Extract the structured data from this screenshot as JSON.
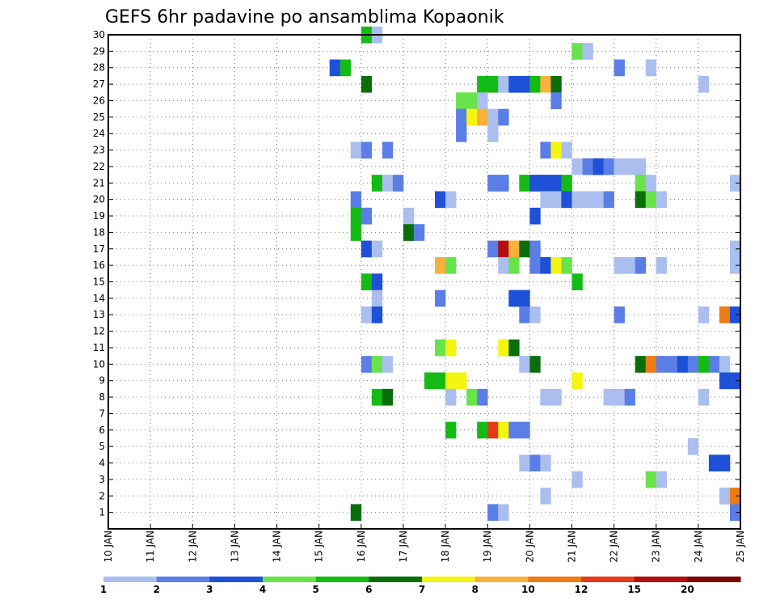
{
  "chart_data": {
    "type": "heatmap",
    "title": "GEFS 6hr padavine po ansamblima Kopaonik",
    "xlabel": "",
    "ylabel": "",
    "x_tick_labels": [
      "10 JAN",
      "11 JAN",
      "12 JAN",
      "13 JAN",
      "14 JAN",
      "15 JAN",
      "16 JAN",
      "17 JAN",
      "18 JAN",
      "19 JAN",
      "20 JAN",
      "21 JAN",
      "22 JAN",
      "23 JAN",
      "24 JAN",
      "25 JAN"
    ],
    "x_range_days": [
      10,
      25
    ],
    "step_hours": 6,
    "members": [
      1,
      2,
      3,
      4,
      5,
      6,
      7,
      8,
      9,
      10,
      11,
      12,
      13,
      14,
      15,
      16,
      17,
      18,
      19,
      20,
      21,
      22,
      23,
      24,
      25,
      26,
      27,
      28,
      29,
      30
    ],
    "y_range": [
      0,
      30
    ],
    "colorbar": {
      "colors": [
        "#aabfef",
        "#5b7ee6",
        "#1e50d8",
        "#67e34b",
        "#15bb15",
        "#0b6e0b",
        "#f5f512",
        "#f7b13c",
        "#ee7b14",
        "#e5391b",
        "#b40f0f",
        "#7a0505"
      ],
      "labels": [
        "1",
        "2",
        "3",
        "4",
        "5",
        "6",
        "7",
        "8",
        "10",
        "12",
        "15",
        "20"
      ]
    },
    "cells": [
      {
        "member": 30,
        "day": 16.0,
        "level": 5
      },
      {
        "member": 30,
        "day": 16.25,
        "level": 1
      },
      {
        "member": 29,
        "day": 21.0,
        "level": 4
      },
      {
        "member": 29,
        "day": 21.25,
        "level": 1
      },
      {
        "member": 28,
        "day": 15.25,
        "level": 3
      },
      {
        "member": 28,
        "day": 15.5,
        "level": 5
      },
      {
        "member": 28,
        "day": 22.0,
        "level": 2
      },
      {
        "member": 28,
        "day": 22.75,
        "level": 1
      },
      {
        "member": 27,
        "day": 16.0,
        "level": 6
      },
      {
        "member": 27,
        "day": 18.75,
        "level": 5
      },
      {
        "member": 27,
        "day": 19.0,
        "level": 5
      },
      {
        "member": 27,
        "day": 19.25,
        "level": 1
      },
      {
        "member": 27,
        "day": 19.5,
        "level": 3
      },
      {
        "member": 27,
        "day": 19.75,
        "level": 3
      },
      {
        "member": 27,
        "day": 20.0,
        "level": 5
      },
      {
        "member": 27,
        "day": 20.25,
        "level": 8
      },
      {
        "member": 27,
        "day": 20.5,
        "level": 6
      },
      {
        "member": 27,
        "day": 24.0,
        "level": 1
      },
      {
        "member": 26,
        "day": 18.25,
        "level": 4
      },
      {
        "member": 26,
        "day": 18.5,
        "level": 4
      },
      {
        "member": 26,
        "day": 18.75,
        "level": 1
      },
      {
        "member": 26,
        "day": 20.5,
        "level": 2
      },
      {
        "member": 25,
        "day": 18.25,
        "level": 2
      },
      {
        "member": 25,
        "day": 18.5,
        "level": 7
      },
      {
        "member": 25,
        "day": 18.75,
        "level": 8
      },
      {
        "member": 25,
        "day": 19.0,
        "level": 1
      },
      {
        "member": 25,
        "day": 19.25,
        "level": 2
      },
      {
        "member": 24,
        "day": 18.25,
        "level": 2
      },
      {
        "member": 24,
        "day": 19.0,
        "level": 1
      },
      {
        "member": 23,
        "day": 15.75,
        "level": 1
      },
      {
        "member": 23,
        "day": 16.0,
        "level": 2
      },
      {
        "member": 23,
        "day": 16.5,
        "level": 2
      },
      {
        "member": 23,
        "day": 20.25,
        "level": 2
      },
      {
        "member": 23,
        "day": 20.5,
        "level": 7
      },
      {
        "member": 23,
        "day": 20.75,
        "level": 1
      },
      {
        "member": 22,
        "day": 21.0,
        "level": 1
      },
      {
        "member": 22,
        "day": 21.25,
        "level": 2
      },
      {
        "member": 22,
        "day": 21.5,
        "level": 3
      },
      {
        "member": 22,
        "day": 21.75,
        "level": 2
      },
      {
        "member": 22,
        "day": 22.0,
        "level": 1
      },
      {
        "member": 22,
        "day": 22.25,
        "level": 1
      },
      {
        "member": 22,
        "day": 22.5,
        "level": 1
      },
      {
        "member": 21,
        "day": 16.25,
        "level": 5
      },
      {
        "member": 21,
        "day": 16.5,
        "level": 1
      },
      {
        "member": 21,
        "day": 16.75,
        "level": 2
      },
      {
        "member": 21,
        "day": 19.0,
        "level": 2
      },
      {
        "member": 21,
        "day": 19.25,
        "level": 2
      },
      {
        "member": 21,
        "day": 19.75,
        "level": 5
      },
      {
        "member": 21,
        "day": 20.0,
        "level": 3
      },
      {
        "member": 21,
        "day": 20.25,
        "level": 3
      },
      {
        "member": 21,
        "day": 20.5,
        "level": 3
      },
      {
        "member": 21,
        "day": 20.75,
        "level": 5
      },
      {
        "member": 21,
        "day": 22.5,
        "level": 4
      },
      {
        "member": 21,
        "day": 22.75,
        "level": 1
      },
      {
        "member": 21,
        "day": 24.75,
        "level": 1
      },
      {
        "member": 20,
        "day": 15.75,
        "level": 2
      },
      {
        "member": 20,
        "day": 17.75,
        "level": 3
      },
      {
        "member": 20,
        "day": 18.0,
        "level": 1
      },
      {
        "member": 20,
        "day": 20.25,
        "level": 1
      },
      {
        "member": 20,
        "day": 20.5,
        "level": 1
      },
      {
        "member": 20,
        "day": 20.75,
        "level": 3
      },
      {
        "member": 20,
        "day": 21.0,
        "level": 1
      },
      {
        "member": 20,
        "day": 21.25,
        "level": 1
      },
      {
        "member": 20,
        "day": 21.5,
        "level": 1
      },
      {
        "member": 20,
        "day": 21.75,
        "level": 2
      },
      {
        "member": 20,
        "day": 22.5,
        "level": 6
      },
      {
        "member": 20,
        "day": 22.75,
        "level": 4
      },
      {
        "member": 20,
        "day": 23.0,
        "level": 1
      },
      {
        "member": 19,
        "day": 15.75,
        "level": 5
      },
      {
        "member": 19,
        "day": 16.0,
        "level": 2
      },
      {
        "member": 19,
        "day": 17.0,
        "level": 1
      },
      {
        "member": 19,
        "day": 20.0,
        "level": 3
      },
      {
        "member": 18,
        "day": 15.75,
        "level": 5
      },
      {
        "member": 18,
        "day": 17.0,
        "level": 6
      },
      {
        "member": 18,
        "day": 17.25,
        "level": 2
      },
      {
        "member": 17,
        "day": 16.0,
        "level": 3
      },
      {
        "member": 17,
        "day": 16.25,
        "level": 1
      },
      {
        "member": 17,
        "day": 19.0,
        "level": 2
      },
      {
        "member": 17,
        "day": 19.25,
        "level": 11
      },
      {
        "member": 17,
        "day": 19.5,
        "level": 8
      },
      {
        "member": 17,
        "day": 19.75,
        "level": 6
      },
      {
        "member": 17,
        "day": 20.0,
        "level": 2
      },
      {
        "member": 17,
        "day": 24.75,
        "level": 1
      },
      {
        "member": 16,
        "day": 17.75,
        "level": 8
      },
      {
        "member": 16,
        "day": 18.0,
        "level": 4
      },
      {
        "member": 16,
        "day": 19.25,
        "level": 1
      },
      {
        "member": 16,
        "day": 19.5,
        "level": 4
      },
      {
        "member": 16,
        "day": 20.0,
        "level": 2
      },
      {
        "member": 16,
        "day": 20.25,
        "level": 3
      },
      {
        "member": 16,
        "day": 20.5,
        "level": 7
      },
      {
        "member": 16,
        "day": 20.75,
        "level": 4
      },
      {
        "member": 16,
        "day": 22.0,
        "level": 1
      },
      {
        "member": 16,
        "day": 22.25,
        "level": 1
      },
      {
        "member": 16,
        "day": 22.5,
        "level": 2
      },
      {
        "member": 16,
        "day": 23.0,
        "level": 1
      },
      {
        "member": 16,
        "day": 24.75,
        "level": 1
      },
      {
        "member": 15,
        "day": 16.0,
        "level": 5
      },
      {
        "member": 15,
        "day": 16.25,
        "level": 3
      },
      {
        "member": 15,
        "day": 21.0,
        "level": 5
      },
      {
        "member": 14,
        "day": 16.25,
        "level": 1
      },
      {
        "member": 14,
        "day": 17.75,
        "level": 2
      },
      {
        "member": 14,
        "day": 19.5,
        "level": 3
      },
      {
        "member": 14,
        "day": 19.75,
        "level": 3
      },
      {
        "member": 13,
        "day": 16.0,
        "level": 1
      },
      {
        "member": 13,
        "day": 16.25,
        "level": 3
      },
      {
        "member": 13,
        "day": 19.75,
        "level": 2
      },
      {
        "member": 13,
        "day": 20.0,
        "level": 1
      },
      {
        "member": 13,
        "day": 22.0,
        "level": 2
      },
      {
        "member": 13,
        "day": 24.0,
        "level": 1
      },
      {
        "member": 13,
        "day": 24.5,
        "level": 9
      },
      {
        "member": 13,
        "day": 24.75,
        "level": 3
      },
      {
        "member": 11,
        "day": 17.75,
        "level": 4
      },
      {
        "member": 11,
        "day": 18.0,
        "level": 7
      },
      {
        "member": 11,
        "day": 19.25,
        "level": 7
      },
      {
        "member": 11,
        "day": 19.5,
        "level": 6
      },
      {
        "member": 10,
        "day": 16.0,
        "level": 2
      },
      {
        "member": 10,
        "day": 16.25,
        "level": 4
      },
      {
        "member": 10,
        "day": 16.5,
        "level": 1
      },
      {
        "member": 10,
        "day": 19.75,
        "level": 1
      },
      {
        "member": 10,
        "day": 20.0,
        "level": 6
      },
      {
        "member": 10,
        "day": 22.5,
        "level": 6
      },
      {
        "member": 10,
        "day": 22.75,
        "level": 9
      },
      {
        "member": 10,
        "day": 23.0,
        "level": 2
      },
      {
        "member": 10,
        "day": 23.25,
        "level": 2
      },
      {
        "member": 10,
        "day": 23.5,
        "level": 3
      },
      {
        "member": 10,
        "day": 23.75,
        "level": 2
      },
      {
        "member": 10,
        "day": 24.0,
        "level": 5
      },
      {
        "member": 10,
        "day": 24.25,
        "level": 2
      },
      {
        "member": 10,
        "day": 24.5,
        "level": 1
      },
      {
        "member": 9,
        "day": 17.5,
        "level": 5
      },
      {
        "member": 9,
        "day": 17.75,
        "level": 5
      },
      {
        "member": 9,
        "day": 18.0,
        "level": 7
      },
      {
        "member": 9,
        "day": 18.25,
        "level": 7
      },
      {
        "member": 9,
        "day": 21.0,
        "level": 7
      },
      {
        "member": 9,
        "day": 24.5,
        "level": 3
      },
      {
        "member": 9,
        "day": 24.75,
        "level": 3
      },
      {
        "member": 8,
        "day": 16.25,
        "level": 5
      },
      {
        "member": 8,
        "day": 16.5,
        "level": 6
      },
      {
        "member": 8,
        "day": 18.0,
        "level": 1
      },
      {
        "member": 8,
        "day": 18.5,
        "level": 4
      },
      {
        "member": 8,
        "day": 18.75,
        "level": 2
      },
      {
        "member": 8,
        "day": 20.25,
        "level": 1
      },
      {
        "member": 8,
        "day": 20.5,
        "level": 1
      },
      {
        "member": 8,
        "day": 21.75,
        "level": 1
      },
      {
        "member": 8,
        "day": 22.0,
        "level": 1
      },
      {
        "member": 8,
        "day": 22.25,
        "level": 2
      },
      {
        "member": 8,
        "day": 24.0,
        "level": 1
      },
      {
        "member": 6,
        "day": 18.0,
        "level": 5
      },
      {
        "member": 6,
        "day": 18.75,
        "level": 5
      },
      {
        "member": 6,
        "day": 19.0,
        "level": 10
      },
      {
        "member": 6,
        "day": 19.25,
        "level": 7
      },
      {
        "member": 6,
        "day": 19.5,
        "level": 2
      },
      {
        "member": 6,
        "day": 19.75,
        "level": 2
      },
      {
        "member": 5,
        "day": 23.75,
        "level": 1
      },
      {
        "member": 4,
        "day": 19.75,
        "level": 1
      },
      {
        "member": 4,
        "day": 20.0,
        "level": 2
      },
      {
        "member": 4,
        "day": 20.25,
        "level": 1
      },
      {
        "member": 4,
        "day": 24.25,
        "level": 3
      },
      {
        "member": 4,
        "day": 24.5,
        "level": 3
      },
      {
        "member": 3,
        "day": 21.0,
        "level": 1
      },
      {
        "member": 3,
        "day": 22.75,
        "level": 4
      },
      {
        "member": 3,
        "day": 23.0,
        "level": 1
      },
      {
        "member": 2,
        "day": 20.25,
        "level": 1
      },
      {
        "member": 2,
        "day": 24.5,
        "level": 1
      },
      {
        "member": 2,
        "day": 24.75,
        "level": 9
      },
      {
        "member": 1,
        "day": 15.75,
        "level": 6
      },
      {
        "member": 1,
        "day": 19.0,
        "level": 2
      },
      {
        "member": 1,
        "day": 19.25,
        "level": 1
      },
      {
        "member": 1,
        "day": 24.75,
        "level": 2
      }
    ]
  }
}
